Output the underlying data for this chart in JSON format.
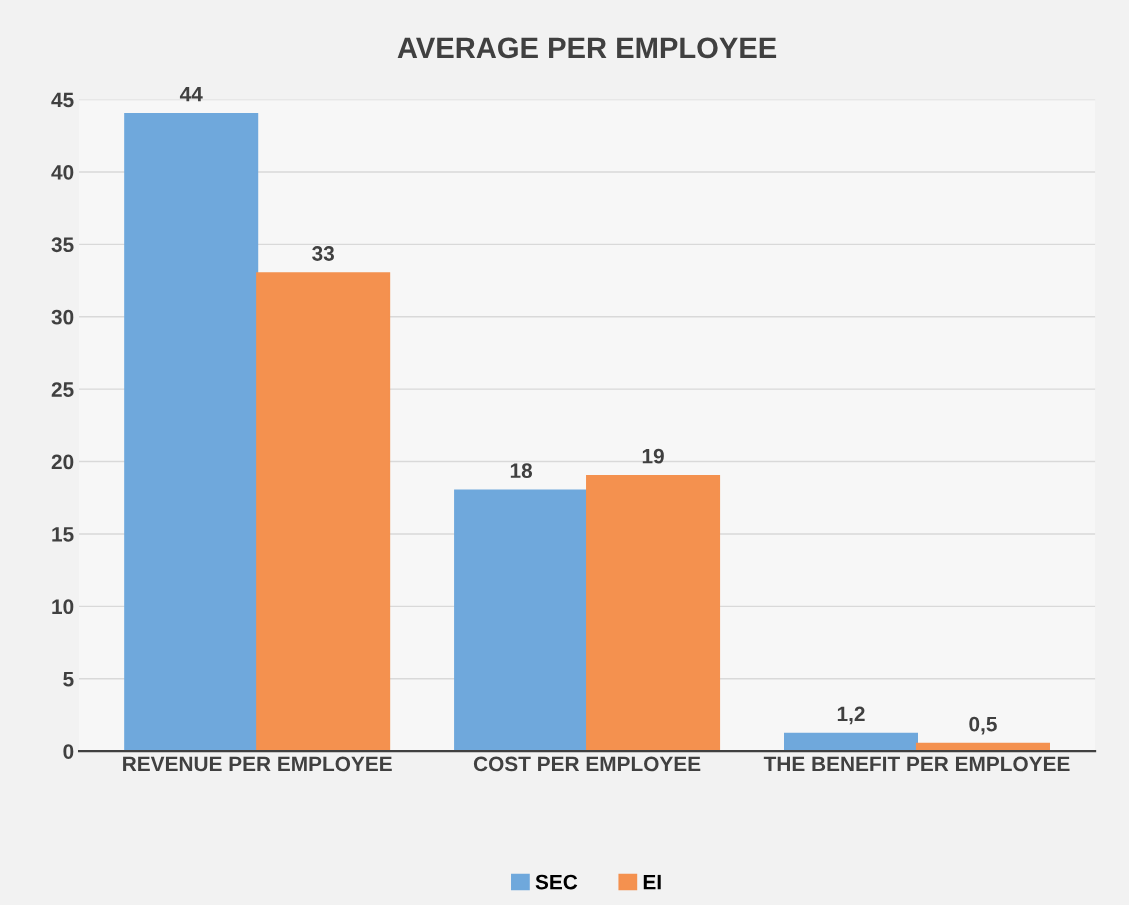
{
  "chart_data": {
    "type": "bar",
    "title": "AVERAGE PER EMPLOYEE",
    "categories": [
      "REVENUE PER EMPLOYEE",
      "COST PER EMPLOYEE",
      "THE BENEFIT PER EMPLOYEE"
    ],
    "series": [
      {
        "name": "SEC",
        "color": "#6fa8dc",
        "values": [
          44,
          18,
          1.2
        ],
        "value_labels": [
          "44",
          "18",
          "1,2"
        ]
      },
      {
        "name": "EI",
        "color": "#f4914f",
        "values": [
          33,
          19,
          0.5
        ],
        "value_labels": [
          "33",
          "19",
          "0,5"
        ]
      }
    ],
    "ylim": [
      0,
      45
    ],
    "yticks": [
      0,
      5,
      10,
      15,
      20,
      25,
      30,
      35,
      40,
      45
    ],
    "grid": "y",
    "legend": "bottom"
  }
}
